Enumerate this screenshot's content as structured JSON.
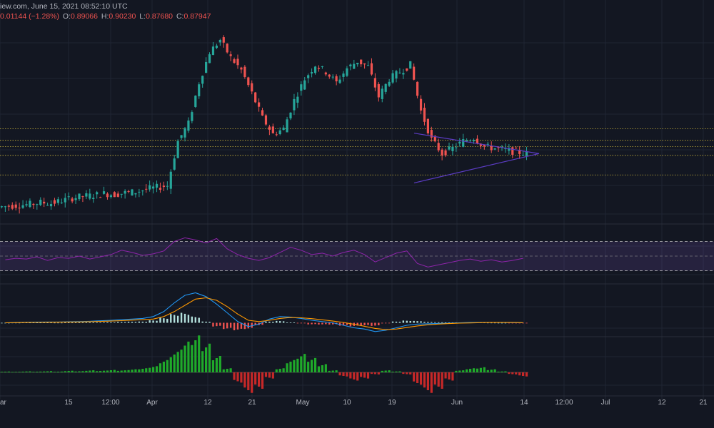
{
  "header": {
    "line1": "iew.com, June 15, 2021 08:52:10 UTC",
    "change": "0.01144 (−1.28%)",
    "o_label": "O:",
    "o_value": "0.89066",
    "h_label": "H:",
    "h_value": "0.90230",
    "l_label": "L:",
    "l_value": "0.87680",
    "c_label": "C:",
    "c_value": "0.87947"
  },
  "colors": {
    "background": "#131722",
    "grid": "#1f2433",
    "up": "#26a69a",
    "down": "#ef5350",
    "triangle": "#5b3cc4",
    "level": "#c9b33a",
    "rsi": "#8e24aa",
    "macd": "#2196f3",
    "signal": "#ff9800",
    "osc_up": "#1faa2a",
    "osc_down": "#c62828"
  },
  "chart_data": {
    "type": "candlestick",
    "x_ticks": [
      "ar",
      "15",
      "12:00",
      "Apr",
      "12",
      "21",
      "May",
      "10",
      "19",
      "Jun",
      "14",
      "12:00",
      "Jul",
      "12",
      "21"
    ],
    "price": {
      "points": [
        0.585,
        0.59,
        0.595,
        0.605,
        0.6,
        0.615,
        0.63,
        0.64,
        0.645,
        0.655,
        0.65,
        0.66,
        0.665,
        0.68,
        0.69,
        0.7,
        0.95,
        1.05,
        1.28,
        1.45,
        1.52,
        1.42,
        1.35,
        1.22,
        1.08,
        0.99,
        1.02,
        1.18,
        1.3,
        1.38,
        1.34,
        1.28,
        1.36,
        1.4,
        1.37,
        1.2,
        1.3,
        1.34,
        1.38,
        1.12,
        0.96,
        0.88,
        0.91,
        0.95,
        0.97,
        0.92,
        0.91,
        0.9,
        0.89,
        0.88
      ],
      "levels": [
        1.02,
        0.955,
        0.92,
        0.87,
        0.76
      ],
      "triangle_upper": [
        [
          0.58,
          0.995
        ],
        [
          0.755,
          0.88
        ]
      ],
      "triangle_lower": [
        [
          0.58,
          0.715
        ],
        [
          0.755,
          0.88
        ]
      ]
    },
    "rsi": {
      "upper_band": 70,
      "mid": 50,
      "lower_band": 30,
      "points": [
        45,
        47,
        46,
        49,
        44,
        48,
        47,
        50,
        46,
        49,
        52,
        58,
        55,
        51,
        53,
        57,
        70,
        75,
        72,
        68,
        74,
        60,
        52,
        47,
        44,
        48,
        55,
        62,
        58,
        52,
        54,
        50,
        55,
        58,
        52,
        42,
        48,
        54,
        57,
        40,
        35,
        38,
        41,
        44,
        46,
        43,
        45,
        42,
        44,
        47
      ]
    },
    "macd": {
      "macd": [
        0.0,
        0.002,
        0.004,
        0.005,
        0.006,
        0.006,
        0.008,
        0.01,
        0.012,
        0.016,
        0.02,
        0.025,
        0.03,
        0.035,
        0.05,
        0.09,
        0.16,
        0.22,
        0.24,
        0.21,
        0.15,
        0.08,
        0.01,
        -0.03,
        -0.01,
        0.03,
        0.05,
        0.045,
        0.035,
        0.02,
        0.01,
        0.0,
        -0.02,
        -0.04,
        -0.05,
        -0.07,
        -0.06,
        -0.04,
        -0.02,
        -0.01,
        -0.008,
        -0.005,
        -0.003,
        0.0,
        0.002,
        0.003,
        0.003,
        0.002,
        0.001,
        0.0
      ],
      "signal": [
        0.0,
        0.001,
        0.002,
        0.003,
        0.004,
        0.005,
        0.006,
        0.007,
        0.009,
        0.011,
        0.014,
        0.017,
        0.021,
        0.025,
        0.03,
        0.05,
        0.09,
        0.14,
        0.19,
        0.2,
        0.18,
        0.13,
        0.07,
        0.02,
        0.01,
        0.02,
        0.035,
        0.042,
        0.04,
        0.033,
        0.024,
        0.014,
        0.003,
        -0.012,
        -0.028,
        -0.045,
        -0.055,
        -0.05,
        -0.038,
        -0.025,
        -0.016,
        -0.01,
        -0.006,
        -0.003,
        -0.001,
        0.001,
        0.002,
        0.002,
        0.002,
        0.001
      ]
    },
    "oscillator": {
      "values": [
        0.004,
        0.003,
        0.005,
        0.004,
        0.006,
        0.004,
        0.008,
        0.006,
        0.01,
        0.008,
        0.012,
        0.01,
        0.015,
        0.02,
        0.03,
        0.06,
        0.1,
        0.15,
        0.18,
        0.14,
        0.08,
        0.02,
        -0.05,
        -0.1,
        -0.08,
        -0.03,
        0.02,
        0.06,
        0.09,
        0.07,
        0.04,
        0.01,
        -0.02,
        -0.04,
        -0.03,
        -0.01,
        0.01,
        0.005,
        -0.01,
        -0.06,
        -0.1,
        -0.08,
        -0.04,
        0.01,
        0.02,
        0.025,
        0.015,
        0.005,
        -0.01,
        -0.02
      ]
    }
  }
}
